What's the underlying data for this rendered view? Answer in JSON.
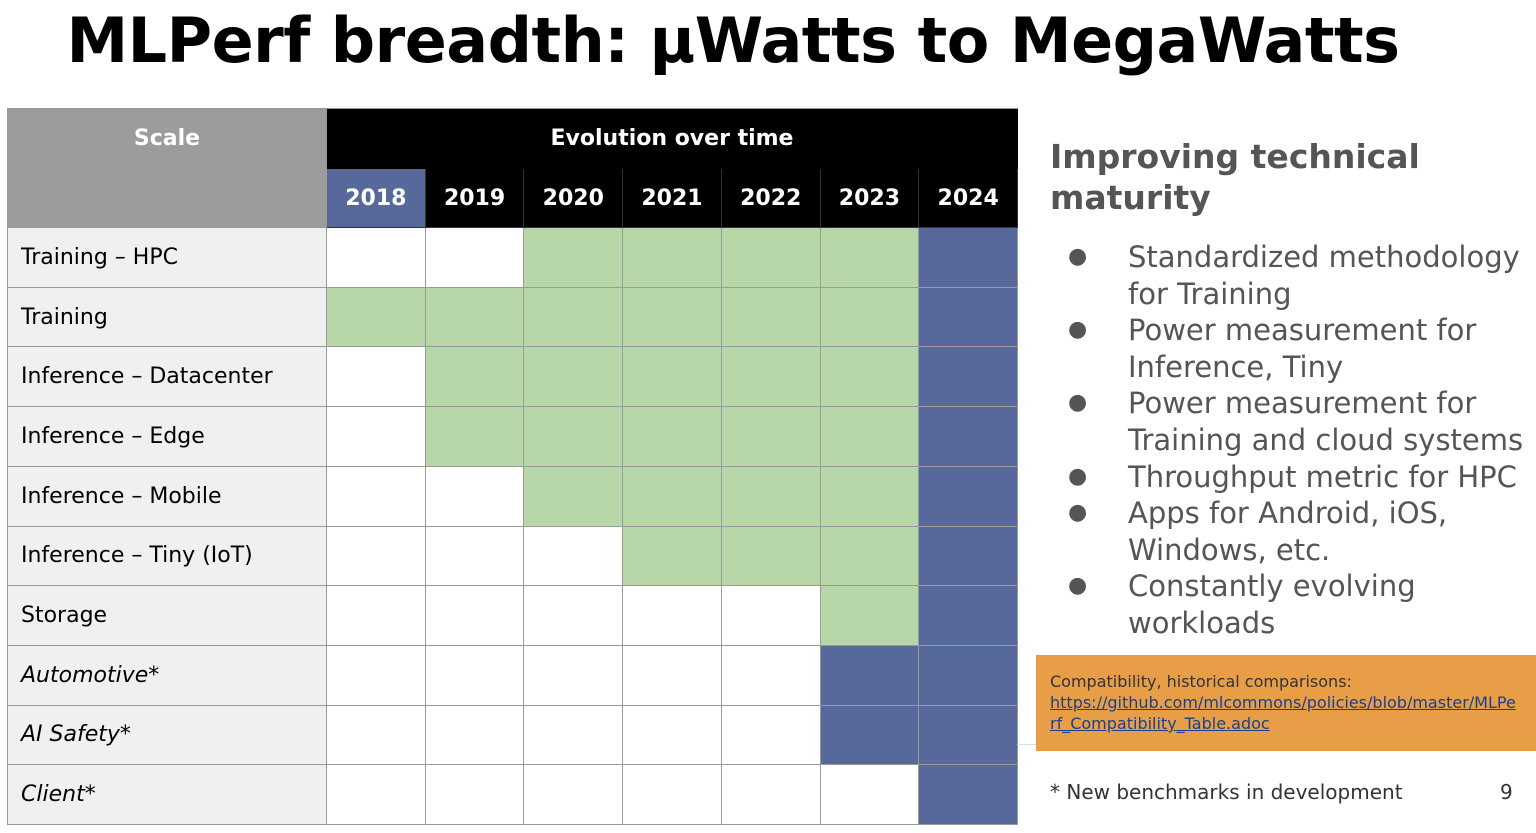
{
  "title": "MLPerf breadth: μWatts to MegaWatts",
  "table": {
    "scale_header": "Scale",
    "evolution_header": "Evolution over time",
    "years": [
      "2018",
      "2019",
      "2020",
      "2021",
      "2022",
      "2023",
      "2024"
    ],
    "current_year_index": 0,
    "colors": {
      "green": "#b8d7a8",
      "blue": "#56699a",
      "white": "#ffffff"
    },
    "rows": [
      {
        "label": "Training – HPC",
        "italic": false,
        "cells": [
          "white",
          "white",
          "green",
          "green",
          "green",
          "green",
          "blue"
        ]
      },
      {
        "label": "Training",
        "italic": false,
        "cells": [
          "green",
          "green",
          "green",
          "green",
          "green",
          "green",
          "blue"
        ]
      },
      {
        "label": "Inference – Datacenter",
        "italic": false,
        "cells": [
          "white",
          "green",
          "green",
          "green",
          "green",
          "green",
          "blue"
        ]
      },
      {
        "label": "Inference – Edge",
        "italic": false,
        "cells": [
          "white",
          "green",
          "green",
          "green",
          "green",
          "green",
          "blue"
        ]
      },
      {
        "label": "Inference – Mobile",
        "italic": false,
        "cells": [
          "white",
          "white",
          "green",
          "green",
          "green",
          "green",
          "blue"
        ]
      },
      {
        "label": "Inference – Tiny (IoT)",
        "italic": false,
        "cells": [
          "white",
          "white",
          "white",
          "green",
          "green",
          "green",
          "blue"
        ]
      },
      {
        "label": "Storage",
        "italic": false,
        "cells": [
          "white",
          "white",
          "white",
          "white",
          "white",
          "green",
          "blue"
        ]
      },
      {
        "label": "Automotive*",
        "italic": true,
        "cells": [
          "white",
          "white",
          "white",
          "white",
          "white",
          "blue",
          "blue"
        ]
      },
      {
        "label": "AI Safety*",
        "italic": true,
        "cells": [
          "white",
          "white",
          "white",
          "white",
          "white",
          "blue",
          "blue"
        ]
      },
      {
        "label": "Client*",
        "italic": true,
        "cells": [
          "white",
          "white",
          "white",
          "white",
          "white",
          "white",
          "blue"
        ]
      }
    ]
  },
  "sidebar": {
    "heading": "Improving technical maturity",
    "bullet_glyph": "●",
    "bullets": [
      "Standardized methodology for Training",
      "Power measurement for Inference, Tiny",
      "Power measurement for Training and cloud systems",
      "Throughput metric for HPC",
      "Apps for Android, iOS, Windows, etc.",
      "Constantly evolving workloads"
    ]
  },
  "compat": {
    "text": "Compatibility, historical comparisons:",
    "link": "https://github.com/mlcommons/policies/blob/master/MLPerf_Compatibility_Table.adoc"
  },
  "footnote": "* New benchmarks in development",
  "page_number": "9"
}
